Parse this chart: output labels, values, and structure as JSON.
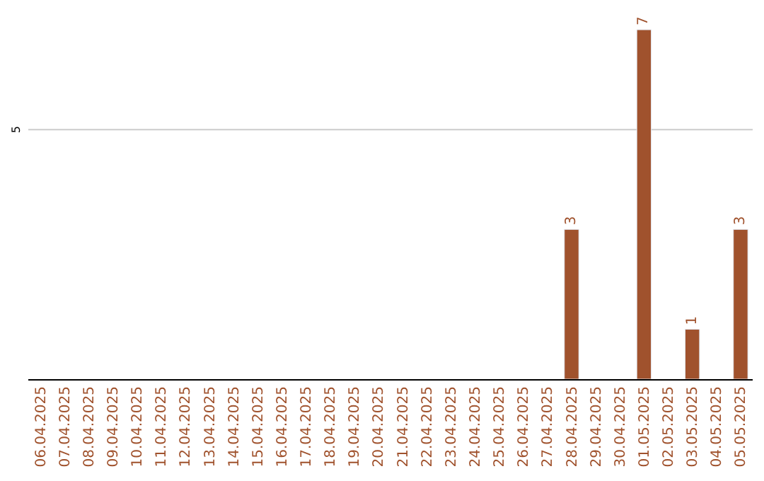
{
  "chart_data": {
    "type": "bar",
    "categories": [
      "06.04.2025",
      "07.04.2025",
      "08.04.2025",
      "09.04.2025",
      "10.04.2025",
      "11.04.2025",
      "12.04.2025",
      "13.04.2025",
      "14.04.2025",
      "15.04.2025",
      "16.04.2025",
      "17.04.2025",
      "18.04.2025",
      "19.04.2025",
      "20.04.2025",
      "21.04.2025",
      "22.04.2025",
      "23.04.2025",
      "24.04.2025",
      "25.04.2025",
      "26.04.2025",
      "27.04.2025",
      "28.04.2025",
      "29.04.2025",
      "30.04.2025",
      "01.05.2025",
      "02.05.2025",
      "03.05.2025",
      "04.05.2025",
      "05.05.2025"
    ],
    "values": [
      null,
      null,
      null,
      null,
      null,
      null,
      null,
      null,
      null,
      null,
      null,
      null,
      null,
      null,
      null,
      null,
      null,
      null,
      null,
      null,
      null,
      null,
      3,
      null,
      null,
      7,
      null,
      1,
      null,
      3
    ],
    "data_labels": true,
    "color": "#a0522d",
    "ref_lines": [
      {
        "axis": "y",
        "value": 5,
        "label": "5",
        "color": "#cccccc"
      }
    ],
    "legend": false
  }
}
